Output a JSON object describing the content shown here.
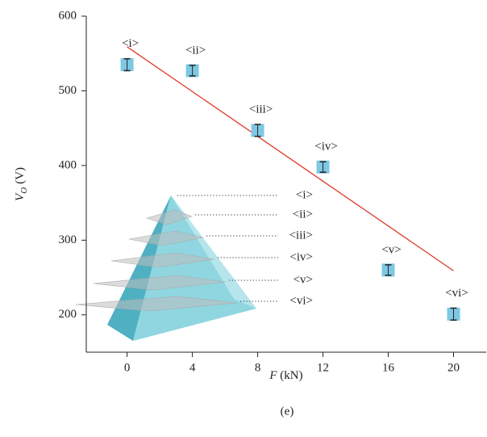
{
  "chart_data": {
    "type": "scatter",
    "caption": "(e)",
    "xlabel": {
      "symbol": "F",
      "unit": "(kN)"
    },
    "ylabel": {
      "symbol": "V",
      "subscript": "O",
      "unit": "(V)"
    },
    "xlim": [
      -2.5,
      22
    ],
    "ylim": [
      150,
      600
    ],
    "xticks": [
      0,
      4,
      8,
      12,
      16,
      20
    ],
    "yticks": [
      200,
      300,
      400,
      500,
      600
    ],
    "series": [
      {
        "color": "#7ec8e3",
        "x": [
          0,
          4,
          8,
          12,
          16,
          20
        ],
        "values": [
          535,
          527,
          447,
          398,
          260,
          201
        ],
        "errors": [
          8,
          7,
          8,
          7,
          7,
          8
        ],
        "labels": [
          "<i>",
          "<ii>",
          "<iii>",
          "<iv>",
          "<v>",
          "<vi>"
        ]
      }
    ],
    "fit": {
      "color": "#e03a2a",
      "x": [
        0,
        20
      ],
      "y": [
        559,
        259
      ]
    }
  }
}
